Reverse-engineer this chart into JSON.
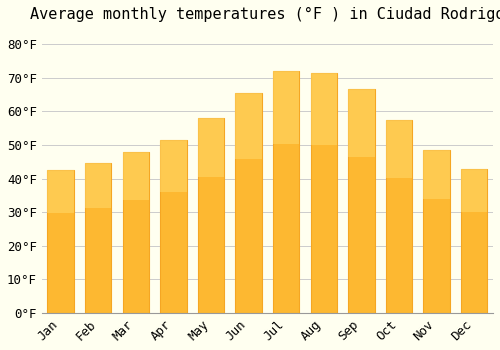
{
  "title": "Average monthly temperatures (°F ) in Ciudad Rodrigo",
  "months": [
    "Jan",
    "Feb",
    "Mar",
    "Apr",
    "May",
    "Jun",
    "Jul",
    "Aug",
    "Sep",
    "Oct",
    "Nov",
    "Dec"
  ],
  "values": [
    42.5,
    44.5,
    48.0,
    51.5,
    58.0,
    65.5,
    72.0,
    71.5,
    66.5,
    57.5,
    48.5,
    43.0
  ],
  "bar_color": "#FDB831",
  "bar_edge_color": "#F5A623",
  "background_color": "#FFFFF0",
  "grid_color": "#CCCCCC",
  "ylim": [
    0,
    85
  ],
  "yticks": [
    0,
    10,
    20,
    30,
    40,
    50,
    60,
    70,
    80
  ],
  "title_fontsize": 11,
  "tick_fontsize": 9,
  "font_family": "monospace"
}
